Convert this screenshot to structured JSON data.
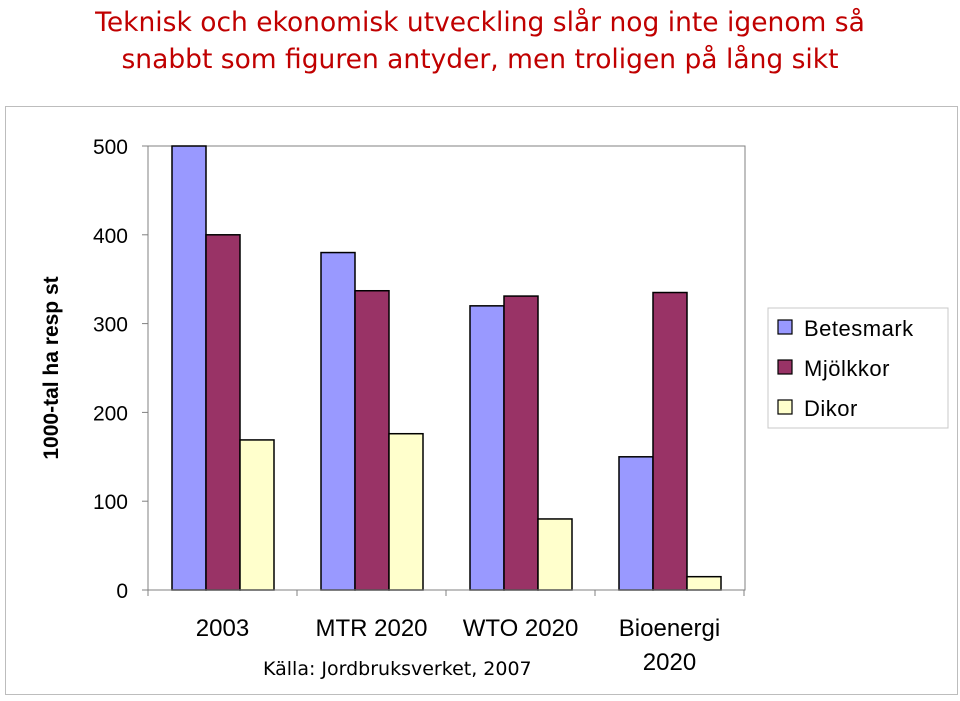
{
  "title_lines": [
    "Teknisk och ekonomisk utveckling slår nog inte igenom så",
    "snabbt som figuren antyder, men troligen på lång sikt"
  ],
  "source": "Källa: Jordbruksverket, 2007",
  "colors": {
    "title": "#c00000",
    "betesmark": "#9999ff",
    "mjolkkor": "#993366",
    "dikor": "#ffffcc"
  },
  "chart_data": {
    "type": "bar",
    "categories": [
      "2003",
      "MTR 2020",
      "WTO 2020",
      "Bioenergi 2020"
    ],
    "category_lines": [
      [
        "2003"
      ],
      [
        "MTR 2020"
      ],
      [
        "WTO 2020"
      ],
      [
        "Bioenergi",
        "2020"
      ]
    ],
    "series": [
      {
        "name": "Betesmark",
        "color": "#9999ff",
        "values": [
          500,
          380,
          320,
          150
        ]
      },
      {
        "name": "Mjölkkor",
        "color": "#993366",
        "values": [
          400,
          337,
          331,
          335
        ]
      },
      {
        "name": "Dikor",
        "color": "#ffffcc",
        "values": [
          169,
          176,
          80,
          15
        ]
      }
    ],
    "title": "",
    "xlabel": "",
    "ylabel": "1000-tal ha resp st",
    "ylim": [
      0,
      500
    ],
    "yticks": [
      0,
      100,
      200,
      300,
      400,
      500
    ],
    "grid": false,
    "legend": "right"
  }
}
